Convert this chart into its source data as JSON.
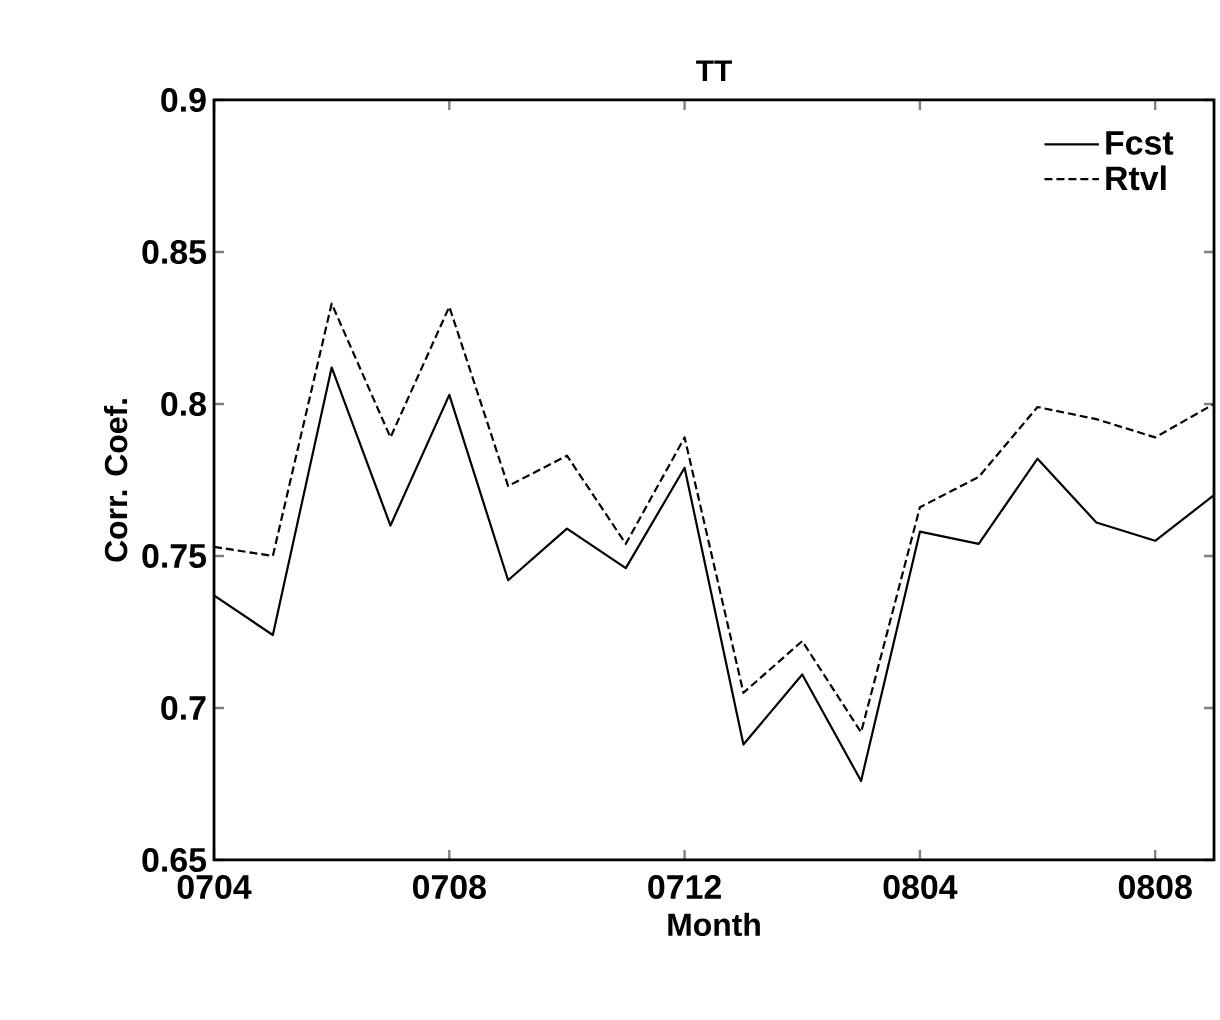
{
  "chart_data": {
    "type": "line",
    "title": "TT",
    "xlabel": "Month",
    "ylabel": "Corr. Coef.",
    "categories": [
      "0704",
      null,
      null,
      null,
      "0708",
      null,
      null,
      null,
      "0712",
      null,
      null,
      null,
      "0804",
      null,
      null,
      null,
      "0808",
      null
    ],
    "ylim": [
      0.65,
      0.9
    ],
    "yticks": [
      0.65,
      0.7,
      0.75,
      0.8,
      0.85,
      0.9
    ],
    "grid": false,
    "legend": "top right",
    "marker": "none",
    "series": [
      {
        "name": "Fcst",
        "color": "#000000",
        "line_style": "solid",
        "values": [
          0.737,
          0.724,
          0.812,
          0.76,
          0.803,
          0.742,
          0.759,
          0.746,
          0.779,
          0.688,
          0.711,
          0.676,
          0.758,
          0.754,
          0.782,
          0.761,
          0.755,
          0.77
        ]
      },
      {
        "name": "Rtvl",
        "color": "#000000",
        "line_style": "dashed",
        "values": [
          0.753,
          0.75,
          0.833,
          0.789,
          0.832,
          0.773,
          0.783,
          0.754,
          0.789,
          0.705,
          0.722,
          0.692,
          0.766,
          0.776,
          0.799,
          0.795,
          0.789,
          0.8
        ]
      }
    ]
  }
}
